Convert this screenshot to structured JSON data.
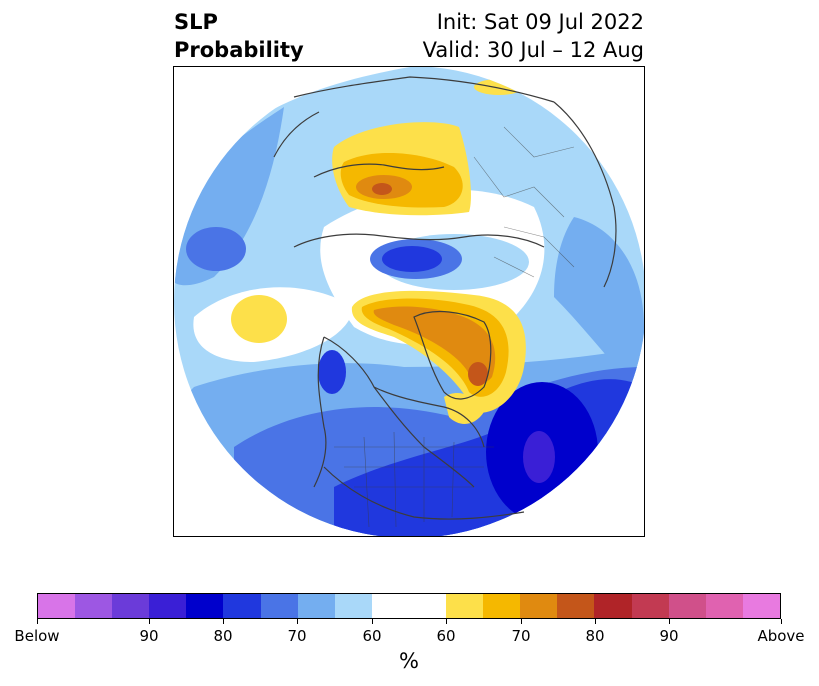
{
  "header": {
    "title_line1": "SLP",
    "title_line2": "Probability",
    "init": "Init: Sat 09 Jul 2022",
    "valid": "Valid: 30 Jul – 12 Aug"
  },
  "colorbar": {
    "colors": [
      "#d874e8",
      "#9d57e3",
      "#6b3bd9",
      "#3a1fd6",
      "#0000cc",
      "#2038de",
      "#4a74e6",
      "#74aef0",
      "#a9d8f9",
      "#ffffff",
      "#ffffff",
      "#fde04a",
      "#f5b800",
      "#e08a10",
      "#c4561a",
      "#b02428",
      "#c23a52",
      "#d0508a",
      "#e062b0",
      "#e87ae0"
    ],
    "labels": [
      "Below",
      "90",
      "80",
      "70",
      "60",
      "60",
      "70",
      "80",
      "90",
      "Above"
    ],
    "unit": "%"
  },
  "map": {
    "projection": "north polar stereographic",
    "palette": {
      "b1": "#a9d8f9",
      "b2": "#74aef0",
      "b3": "#4a74e6",
      "b4": "#2038de",
      "b5": "#0000cc",
      "b6": "#3a1fd6",
      "y1": "#fde04a",
      "y2": "#f5b800",
      "y3": "#e08a10",
      "y4": "#c4561a",
      "coast": "#3c3c3c"
    }
  }
}
